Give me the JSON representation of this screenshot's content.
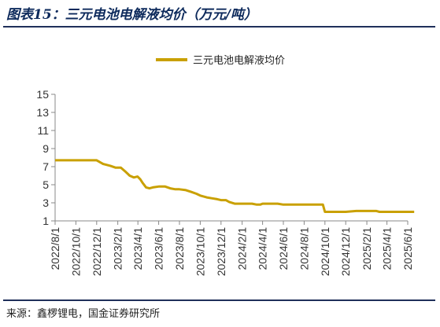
{
  "figure": {
    "title": "图表15：三元电池电解液均价（万元/吨）",
    "source": "来源：鑫椤锂电，国金证券研究所"
  },
  "chart_data": {
    "type": "line",
    "title": "",
    "xlabel": "",
    "ylabel": "",
    "ylim": [
      1,
      15
    ],
    "yticks": [
      1,
      3,
      5,
      7,
      9,
      11,
      13,
      15
    ],
    "x_tick_labels": [
      "2022/8/1",
      "2022/10/1",
      "2022/12/1",
      "2023/2/1",
      "2023/4/1",
      "2023/6/1",
      "2023/8/1",
      "2023/10/1",
      "2023/12/1",
      "2024/2/1",
      "2024/4/1",
      "2024/6/1",
      "2024/8/1",
      "2024/10/1",
      "2024/12/1",
      "2025/2/1",
      "2025/4/1",
      "2025/6/1"
    ],
    "grid": false,
    "legend_position": "top-center",
    "line_color": "#c9a000",
    "series": [
      {
        "name": "三元电池电解液均价",
        "x": [
          "2022/8/1",
          "2022/10/1",
          "2022/11/15",
          "2022/12/1",
          "2022/12/20",
          "2023/1/10",
          "2023/1/25",
          "2023/2/10",
          "2023/2/25",
          "2023/3/8",
          "2023/3/20",
          "2023/3/31",
          "2023/4/8",
          "2023/4/15",
          "2023/4/25",
          "2023/5/5",
          "2023/5/15",
          "2023/6/1",
          "2023/6/20",
          "2023/7/5",
          "2023/7/20",
          "2023/8/1",
          "2023/8/20",
          "2023/9/5",
          "2023/9/20",
          "2023/10/1",
          "2023/10/20",
          "2023/11/5",
          "2023/11/20",
          "2023/12/1",
          "2023/12/15",
          "2023/12/25",
          "2024/1/10",
          "2024/2/1",
          "2024/3/1",
          "2024/3/15",
          "2024/3/25",
          "2024/4/1",
          "2024/5/1",
          "2024/5/15",
          "2024/6/1",
          "2024/7/1",
          "2024/8/1",
          "2024/9/1",
          "2024/9/25",
          "2024/10/1",
          "2024/11/1",
          "2024/12/1",
          "2025/1/1",
          "2025/2/1",
          "2025/3/1",
          "2025/3/10",
          "2025/4/1",
          "2025/5/1",
          "2025/6/1",
          "2025/6/20"
        ],
        "values": [
          7.7,
          7.7,
          7.7,
          7.7,
          7.3,
          7.1,
          6.9,
          6.9,
          6.4,
          6.0,
          5.8,
          5.9,
          5.6,
          5.2,
          4.7,
          4.6,
          4.7,
          4.8,
          4.8,
          4.6,
          4.5,
          4.5,
          4.4,
          4.2,
          4.0,
          3.8,
          3.6,
          3.5,
          3.4,
          3.3,
          3.3,
          3.1,
          2.9,
          2.9,
          2.9,
          2.8,
          2.8,
          2.9,
          2.9,
          2.9,
          2.8,
          2.8,
          2.8,
          2.8,
          2.8,
          2.0,
          2.0,
          2.0,
          2.1,
          2.1,
          2.1,
          2.0,
          2.0,
          2.0,
          2.0,
          2.0
        ]
      }
    ]
  }
}
